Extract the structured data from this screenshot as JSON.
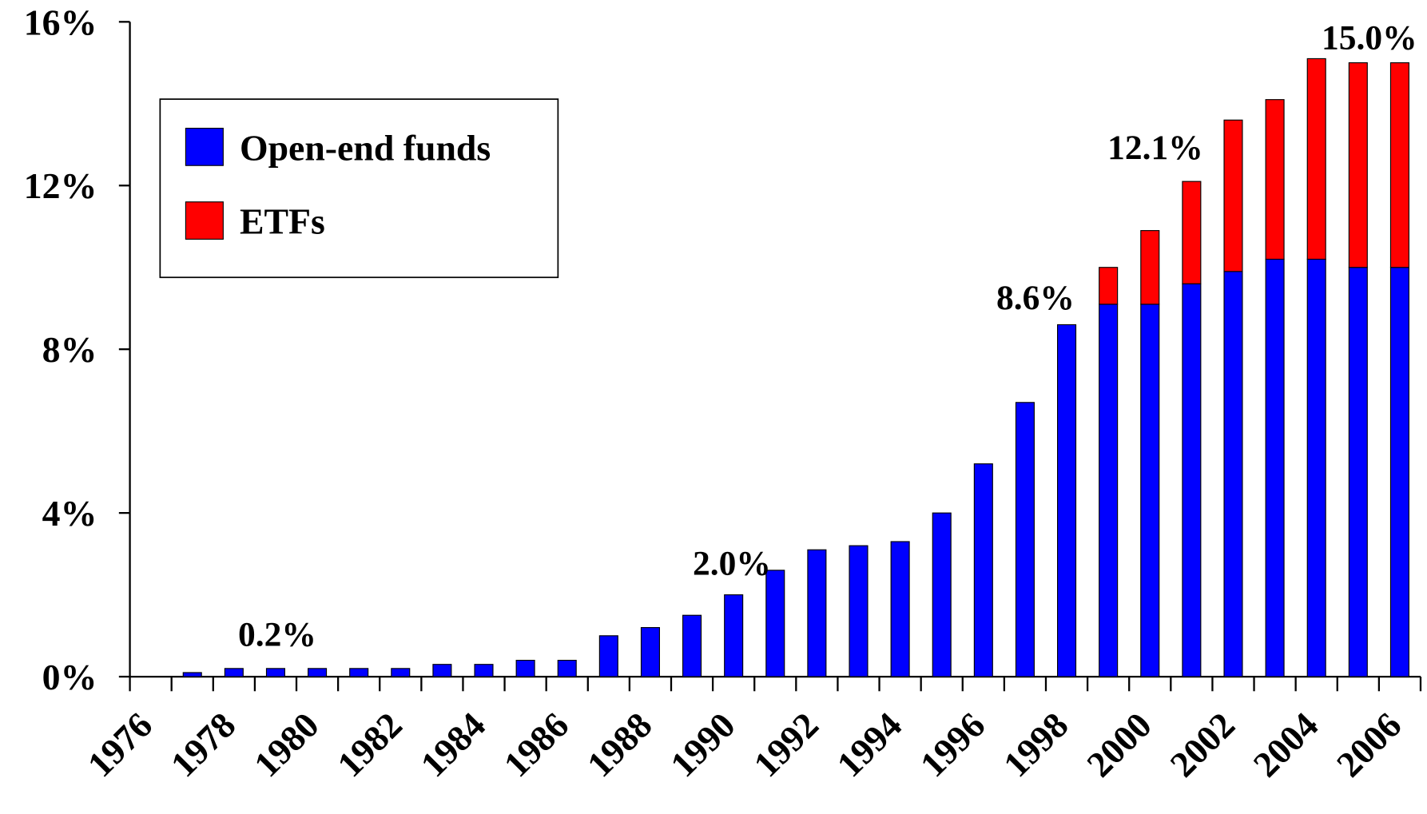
{
  "chart_data": {
    "type": "bar",
    "stacked": true,
    "categories": [
      "1976",
      null,
      "1978",
      null,
      "1980",
      null,
      "1982",
      null,
      "1984",
      null,
      "1986",
      null,
      "1988",
      null,
      "1990",
      null,
      "1992",
      null,
      "1994",
      null,
      "1996",
      null,
      "1998",
      null,
      "2000",
      null,
      "2002",
      null,
      "2004",
      null,
      "2006"
    ],
    "series": [
      {
        "name": "Open-end funds",
        "color": "#0000ff",
        "values": [
          0,
          0.1,
          0.2,
          0.2,
          0.2,
          0.2,
          0.2,
          0.3,
          0.3,
          0.4,
          0.4,
          1.0,
          1.2,
          1.5,
          2.0,
          2.6,
          3.1,
          3.2,
          3.3,
          4.0,
          5.2,
          6.7,
          8.6,
          9.1,
          9.1,
          9.6,
          9.9,
          10.2,
          10.2,
          10.0,
          10.0
        ]
      },
      {
        "name": "ETFs",
        "color": "#ff0000",
        "values": [
          null,
          null,
          null,
          null,
          null,
          null,
          null,
          null,
          null,
          null,
          null,
          null,
          null,
          null,
          null,
          null,
          null,
          null,
          null,
          null,
          null,
          null,
          null,
          0.9,
          1.8,
          2.5,
          3.7,
          3.9,
          4.9,
          5.0,
          5.0
        ]
      }
    ],
    "annotations": [
      "0.2%",
      "2.0%",
      "8.6%",
      "12.1%",
      "15.0%"
    ],
    "ylim": [
      0,
      16
    ],
    "yticks": [
      {
        "value": 0,
        "label": "0%"
      },
      {
        "value": 4,
        "label": "4%"
      },
      {
        "value": 8,
        "label": "8%"
      },
      {
        "value": 12,
        "label": "12%"
      },
      {
        "value": 16,
        "label": "16%"
      }
    ],
    "legend": "upper left"
  }
}
